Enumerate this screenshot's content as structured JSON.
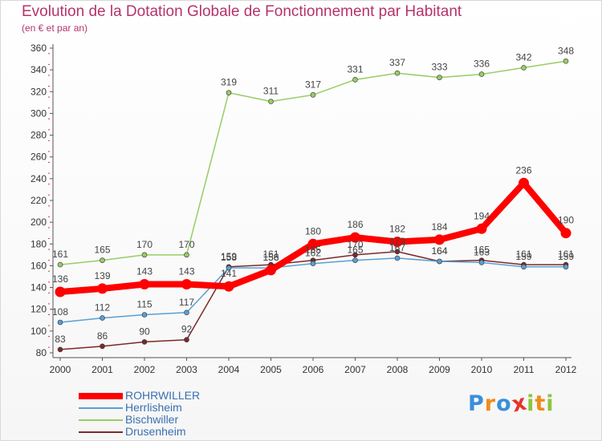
{
  "chart_data": {
    "type": "line",
    "title": "Evolution de la Dotation Globale de Fonctionnement par Habitant",
    "subtitle": "(en € et par an)",
    "xlabel": "",
    "ylabel": "",
    "ylim": [
      80,
      360
    ],
    "yticks": [
      80,
      100,
      120,
      140,
      160,
      180,
      200,
      220,
      240,
      260,
      280,
      300,
      320,
      340,
      360
    ],
    "categories": [
      "2000",
      "2001",
      "2002",
      "2003",
      "2004",
      "2005",
      "2006",
      "2007",
      "2008",
      "2009",
      "2010",
      "2011",
      "2012"
    ],
    "grid": false,
    "legend_position": "bottom-left",
    "series": [
      {
        "name": "ROHRWILLER",
        "color": "#ff0000",
        "values": [
          136,
          139,
          143,
          143,
          141,
          156,
          180,
          186,
          182,
          184,
          194,
          236,
          190
        ]
      },
      {
        "name": "Herrlisheim",
        "color": "#5a9fd4",
        "values": [
          108,
          112,
          115,
          117,
          158,
          158,
          162,
          165,
          167,
          164,
          163,
          159,
          159
        ]
      },
      {
        "name": "Bischwiller",
        "color": "#99cc66",
        "values": [
          161,
          165,
          170,
          170,
          319,
          311,
          317,
          331,
          337,
          333,
          336,
          342,
          348
        ]
      },
      {
        "name": "Drusenheim",
        "color": "#7a2a2a",
        "values": [
          83,
          86,
          90,
          92,
          159,
          161,
          165,
          170,
          173,
          164,
          165,
          161,
          161
        ]
      }
    ]
  },
  "logo": {
    "text": "Proxiti",
    "letters": [
      "P",
      "r",
      "o",
      "x",
      "i",
      "t",
      "i"
    ],
    "colors": [
      "#3a8fd9",
      "#f08c1a",
      "#3a8fd9",
      "#e8342a",
      "#8cc63f",
      "#f08c1a",
      "#8cc63f"
    ]
  }
}
